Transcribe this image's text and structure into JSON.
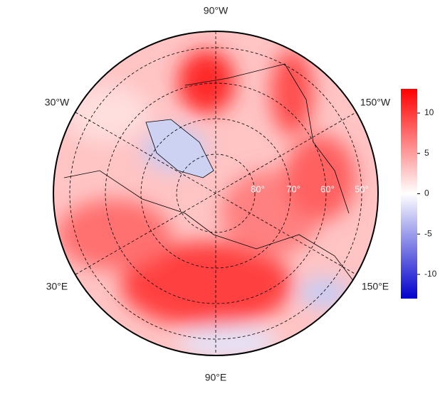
{
  "map": {
    "meridian_labels": [
      "90°W",
      "30°W",
      "150°W",
      "30°E",
      "150°E",
      "90°E"
    ],
    "latitude_labels": [
      "80°",
      "70°",
      "60°",
      "50°"
    ],
    "colorbar": {
      "lim": [
        -13,
        13
      ],
      "ticks": [
        -10,
        -5,
        0,
        5,
        10
      ]
    }
  }
}
